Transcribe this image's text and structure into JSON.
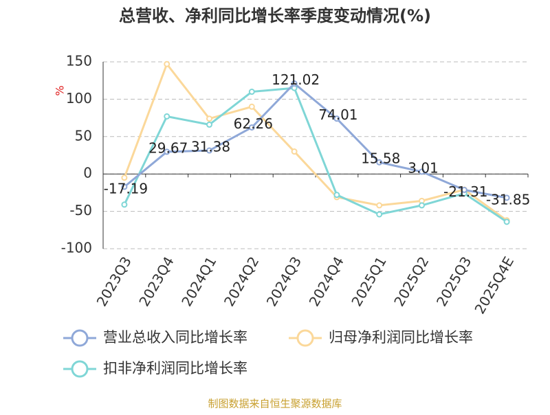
{
  "chart_data": {
    "type": "line",
    "title": "总营收、净利同比增长率季度变动情况(%)",
    "y_label": "%",
    "categories": [
      "2023Q3",
      "2023Q4",
      "2024Q1",
      "2024Q2",
      "2024Q3",
      "2024Q4",
      "2025Q1",
      "2025Q2",
      "2025Q3",
      "2025Q4E"
    ],
    "series": [
      {
        "name": "营业总收入同比增长率",
        "color": "#8fa8d8",
        "values": [
          -17.19,
          29.67,
          31.38,
          62.26,
          121.02,
          74.01,
          15.58,
          3.01,
          -21.31,
          -31.85
        ],
        "show_labels": true
      },
      {
        "name": "归母净利润同比增长率",
        "color": "#fbd89a",
        "values": [
          -5,
          147,
          74,
          90,
          30,
          -31,
          -42,
          -36,
          -21,
          -62
        ],
        "show_labels": false
      },
      {
        "name": "扣非净利润同比增长率",
        "color": "#7fd6d6",
        "values": [
          -41,
          77,
          66,
          110,
          115,
          -28,
          -54,
          -42,
          -26,
          -64
        ],
        "show_labels": false
      }
    ],
    "ylim": [
      -100,
      150
    ],
    "yticks": [
      -100,
      -50,
      0,
      50,
      100,
      150
    ],
    "grid": true,
    "source": "制图数据来自恒生聚源数据库"
  }
}
